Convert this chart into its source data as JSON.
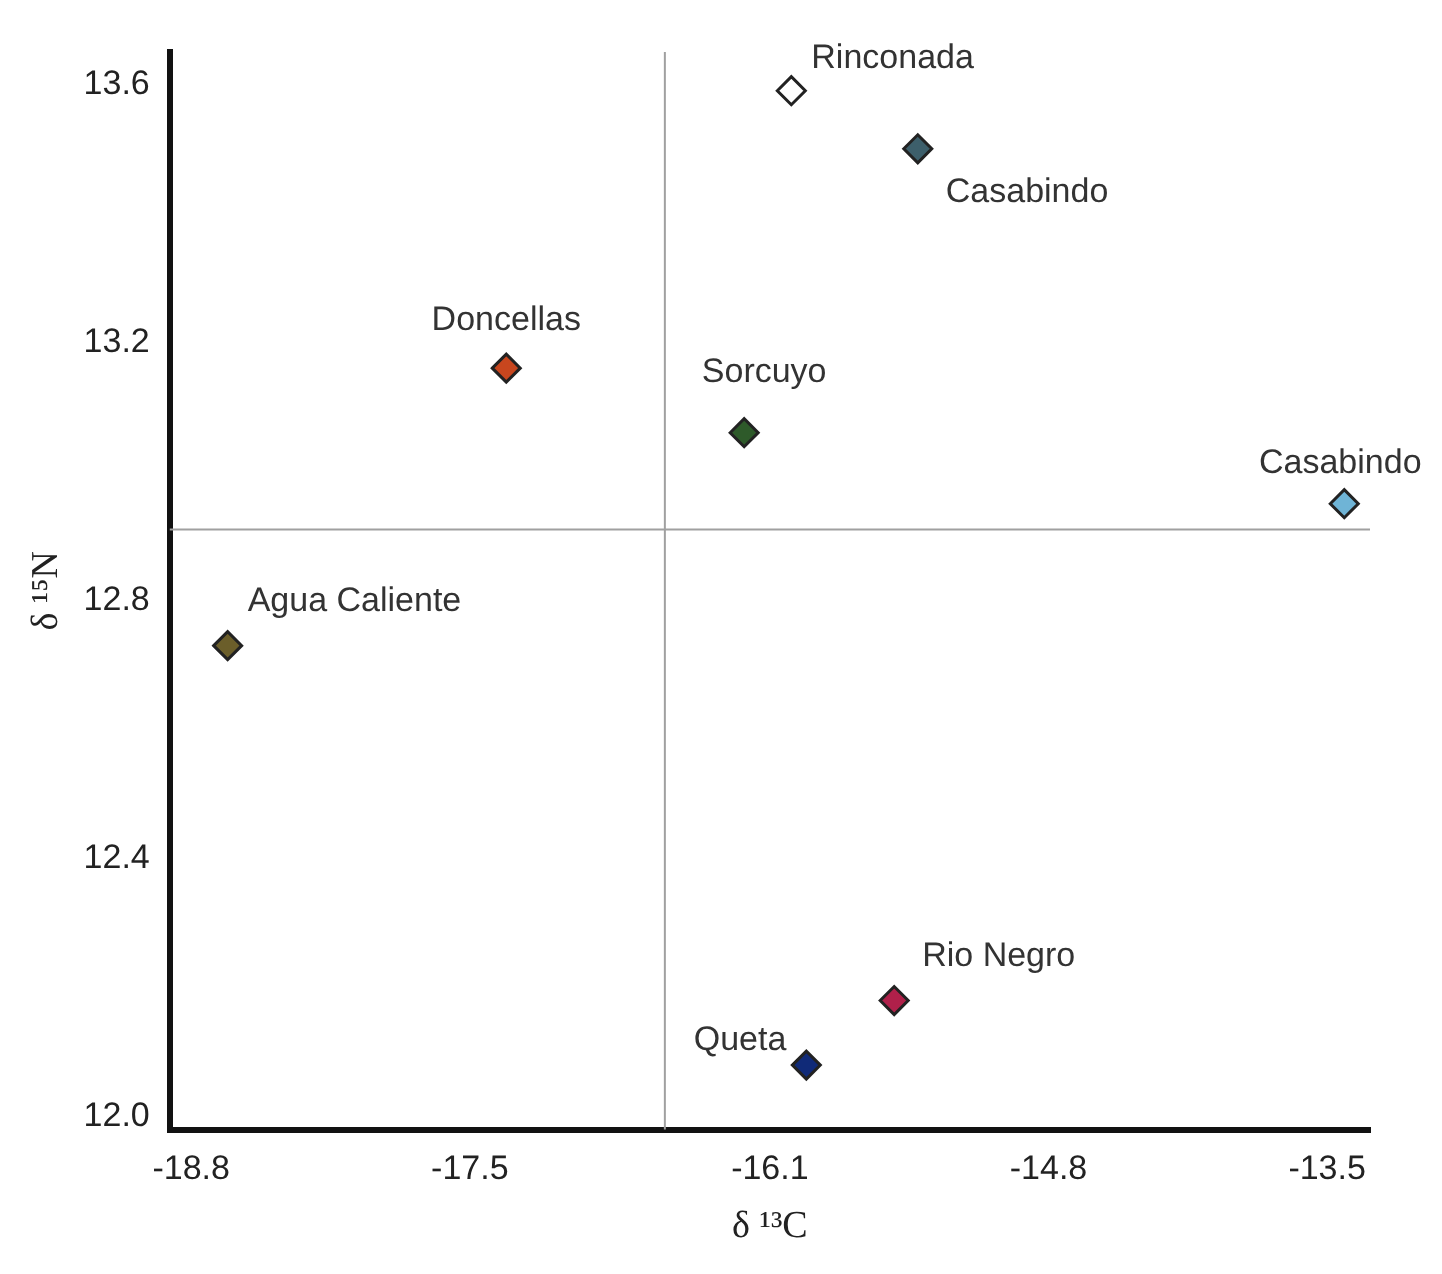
{
  "chart_data": {
    "type": "scatter",
    "xlabel": "δ ¹³C",
    "ylabel": "δ ¹⁵N",
    "xlim": [
      -18.9,
      -13.3
    ],
    "ylim": [
      11.98,
      13.65
    ],
    "xticks": [
      -18.8,
      -17.5,
      -16.1,
      -14.8,
      -13.5
    ],
    "yticks": [
      {
        "value": 12,
        "label": "12.0"
      },
      12.4,
      12.8,
      13.2,
      13.6
    ],
    "marker": "diamond",
    "grid": false,
    "legend": false,
    "ref_lines": [
      {
        "axis": "x",
        "value": -16.59,
        "color": "#a0a0a0"
      },
      {
        "axis": "y",
        "value": 12.91,
        "color": "#a0a0a0"
      }
    ],
    "series": [
      {
        "name": "Rinconada",
        "color": "#ffffff",
        "x": [
          -16.0
        ],
        "values": [
          13.59
        ]
      },
      {
        "name": "Casabindo",
        "color": "#3d5f6b",
        "x": [
          -15.41
        ],
        "values": [
          13.5
        ]
      },
      {
        "name": "Doncellas",
        "color": "#c8461e",
        "x": [
          -17.33
        ],
        "values": [
          13.16
        ]
      },
      {
        "name": "Sorcuyo",
        "color": "#2e5a2a",
        "x": [
          -16.22
        ],
        "values": [
          13.06
        ]
      },
      {
        "name": "Casabindo",
        "color": "#6fb4d6",
        "x": [
          -13.42
        ],
        "values": [
          12.95
        ]
      },
      {
        "name": "Agua Caliente",
        "color": "#6b5e2a",
        "x": [
          -18.63
        ],
        "values": [
          12.73
        ]
      },
      {
        "name": "Rio Negro",
        "color": "#b0204a",
        "x": [
          -15.52
        ],
        "values": [
          12.18
        ]
      },
      {
        "name": "Queta",
        "color": "#102a78",
        "x": [
          -15.93
        ],
        "values": [
          12.08
        ]
      }
    ]
  }
}
